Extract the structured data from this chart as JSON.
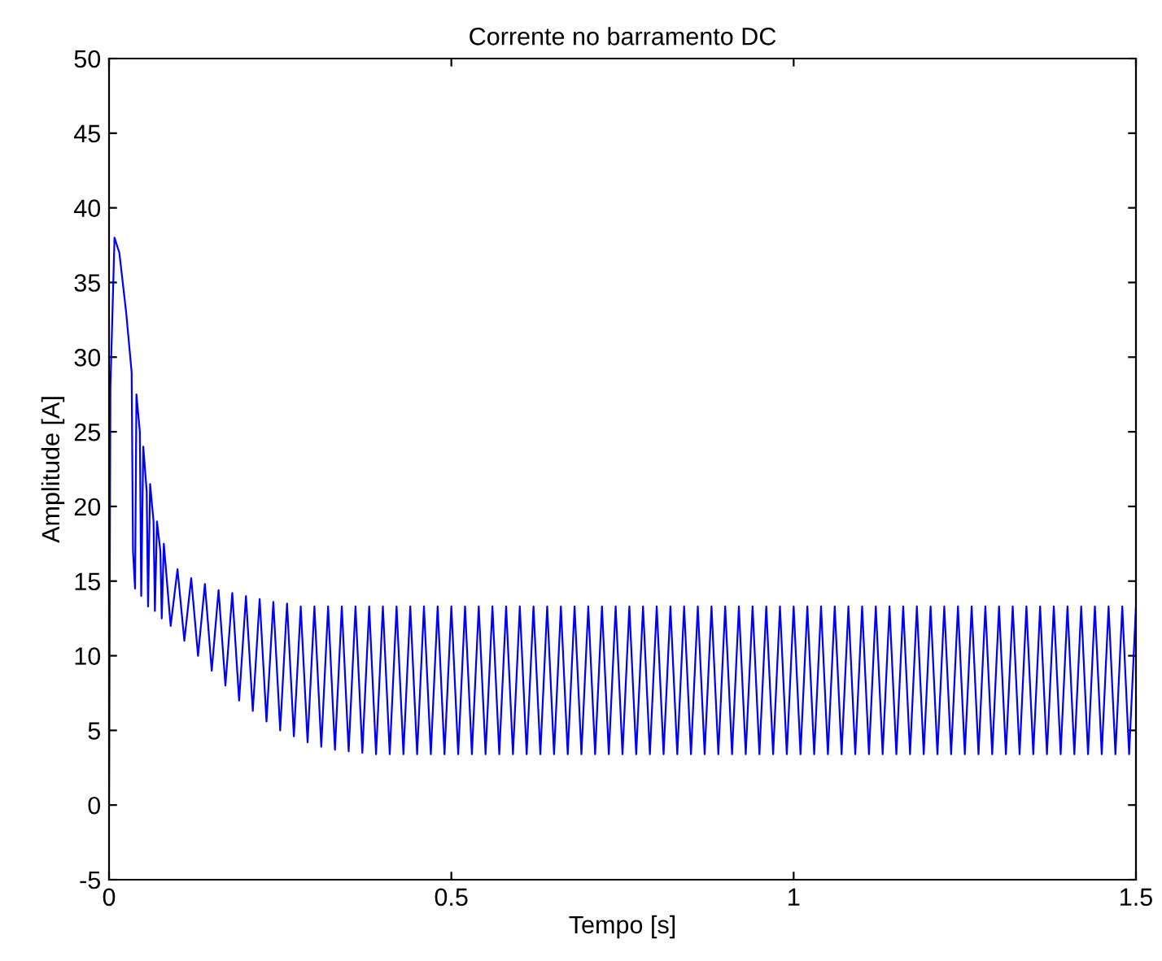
{
  "chart_data": {
    "type": "line",
    "title": "Corrente no barramento DC",
    "xlabel": "Tempo [s]",
    "ylabel": "Amplitude [A]",
    "xlim": [
      0,
      1.5
    ],
    "xticks": [
      0,
      0.5,
      1,
      1.5
    ],
    "ylim": [
      -5,
      50
    ],
    "yticks": [
      -5,
      0,
      5,
      10,
      15,
      20,
      25,
      30,
      35,
      40,
      45,
      50
    ],
    "grid": false,
    "legend": false,
    "marker": "none",
    "line_style": "solid",
    "series": [
      {
        "color": "#0000ff",
        "x": [
          0,
          0.002,
          0.008,
          0.015,
          0.025,
          0.033,
          0.035,
          0.038,
          0.04,
          0.045,
          0.047,
          0.05,
          0.055,
          0.057,
          0.06,
          0.065,
          0.067,
          0.07,
          0.075,
          0.077,
          0.08,
          0.09,
          0.1,
          0.11,
          0.12,
          0.13,
          0.14,
          0.15,
          0.16,
          0.17,
          0.18,
          0.19,
          0.2,
          0.21,
          0.22,
          0.23,
          0.24,
          0.25,
          0.26,
          0.27,
          0.28,
          0.29,
          0.3,
          0.31,
          0.32,
          0.33,
          0.34,
          0.35,
          0.36,
          0.37,
          0.38,
          0.39,
          0.4,
          0.41,
          0.42,
          0.43,
          0.44,
          0.45,
          0.46,
          0.47,
          0.48,
          0.49,
          0.5,
          0.51,
          0.52,
          0.53,
          0.54,
          0.55,
          0.56,
          0.57,
          0.58,
          0.59,
          0.6,
          0.61,
          0.62,
          0.63,
          0.64,
          0.65,
          0.66,
          0.67,
          0.68,
          0.69,
          0.7,
          0.71,
          0.72,
          0.73,
          0.74,
          0.75,
          0.76,
          0.77,
          0.78,
          0.79,
          0.8,
          0.81,
          0.82,
          0.83,
          0.84,
          0.85,
          0.86,
          0.87,
          0.88,
          0.89,
          0.9,
          0.91,
          0.92,
          0.93,
          0.94,
          0.95,
          0.96,
          0.97,
          0.98,
          0.99,
          1,
          1.01,
          1.02,
          1.03,
          1.04,
          1.05,
          1.06,
          1.07,
          1.08,
          1.09,
          1.1,
          1.11,
          1.12,
          1.13,
          1.14,
          1.15,
          1.16,
          1.17,
          1.18,
          1.19,
          1.2,
          1.21,
          1.22,
          1.23,
          1.24,
          1.25,
          1.26,
          1.27,
          1.28,
          1.29,
          1.3,
          1.31,
          1.32,
          1.33,
          1.34,
          1.35,
          1.36,
          1.37,
          1.38,
          1.39,
          1.4,
          1.41,
          1.42,
          1.43,
          1.44,
          1.45,
          1.46,
          1.47,
          1.48,
          1.49,
          1.5
        ],
        "values": [
          0,
          28,
          38,
          37,
          33,
          29,
          17,
          14.5,
          27.5,
          25,
          14,
          24,
          21,
          13.3,
          21.5,
          19,
          13,
          19,
          17,
          12.5,
          17.5,
          12,
          15.8,
          11,
          15.2,
          10,
          14.8,
          9,
          14.4,
          8,
          14.2,
          7,
          14,
          6.3,
          13.8,
          5.6,
          13.6,
          5,
          13.5,
          4.6,
          13.3,
          4.2,
          13.3,
          3.9,
          13.3,
          3.7,
          13.3,
          3.6,
          13.3,
          3.5,
          13.3,
          3.4,
          13.3,
          3.4,
          13.3,
          3.4,
          13.3,
          3.4,
          13.3,
          3.4,
          13.3,
          3.4,
          13.3,
          3.4,
          13.3,
          3.4,
          13.3,
          3.4,
          13.3,
          3.4,
          13.3,
          3.4,
          13.3,
          3.4,
          13.3,
          3.4,
          13.3,
          3.4,
          13.3,
          3.4,
          13.3,
          3.4,
          13.3,
          3.4,
          13.3,
          3.4,
          13.3,
          3.4,
          13.3,
          3.4,
          13.3,
          3.4,
          13.3,
          3.4,
          13.3,
          3.4,
          13.3,
          3.4,
          13.3,
          3.4,
          13.3,
          3.4,
          13.3,
          3.4,
          13.3,
          3.4,
          13.3,
          3.4,
          13.3,
          3.4,
          13.3,
          3.4,
          13.3,
          3.4,
          13.3,
          3.4,
          13.3,
          3.4,
          13.3,
          3.4,
          13.3,
          3.4,
          13.3,
          3.4,
          13.3,
          3.4,
          13.3,
          3.4,
          13.3,
          3.4,
          13.3,
          3.4,
          13.3,
          3.4,
          13.3,
          3.4,
          13.3,
          3.4,
          13.3,
          3.4,
          13.3,
          3.4,
          13.3,
          3.4,
          13.3,
          3.4,
          13.3,
          3.4,
          13.3,
          3.4,
          13.3,
          3.4,
          13.3,
          3.4,
          13.3,
          3.4,
          13.3,
          3.4,
          13.3,
          3.4,
          13.3,
          3.4,
          13.3
        ]
      }
    ]
  }
}
